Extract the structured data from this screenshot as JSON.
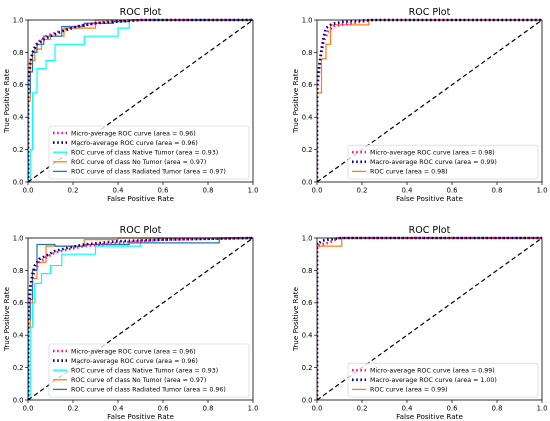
{
  "chart_data": [
    {
      "type": "line",
      "title": "ROC Plot",
      "xlabel": "False Positive Rate",
      "ylabel": "True Positive Rate",
      "xlim": [
        0,
        1
      ],
      "ylim": [
        0,
        1
      ],
      "xticks": [
        "0.0",
        "0.2",
        "0.4",
        "0.6",
        "0.8",
        "1.0"
      ],
      "yticks": [
        "0.0",
        "0.2",
        "0.4",
        "0.6",
        "0.8",
        "1.0"
      ],
      "grid": false,
      "legend_position": "lower right",
      "series": [
        {
          "name": "Micro-average ROC curve (area = 0.96)",
          "color": "#ff1493",
          "style": "dotted",
          "x": [
            0,
            0,
            0.01,
            0.02,
            0.03,
            0.05,
            0.08,
            0.12,
            0.18,
            0.25,
            0.35,
            0.5,
            1.0
          ],
          "y": [
            0,
            0.58,
            0.72,
            0.8,
            0.84,
            0.87,
            0.9,
            0.92,
            0.95,
            0.97,
            0.99,
            1.0,
            1.0
          ]
        },
        {
          "name": "Macro-average ROC curve (area = 0.96)",
          "color": "#000080",
          "style": "dotted",
          "x": [
            0,
            0,
            0.01,
            0.02,
            0.04,
            0.07,
            0.1,
            0.15,
            0.22,
            0.3,
            0.4,
            0.5,
            1.0
          ],
          "y": [
            0,
            0.6,
            0.74,
            0.8,
            0.85,
            0.88,
            0.9,
            0.93,
            0.96,
            0.98,
            0.99,
            1.0,
            1.0
          ]
        },
        {
          "name": "ROC curve of class Native Tumor (area = 0.93)",
          "color": "#00ffff",
          "style": "solid",
          "x": [
            0,
            0.01,
            0.01,
            0.02,
            0.02,
            0.04,
            0.04,
            0.08,
            0.08,
            0.12,
            0.12,
            0.25,
            0.25,
            0.4,
            0.4,
            0.45,
            0.45,
            1.0
          ],
          "y": [
            0,
            0,
            0.2,
            0.2,
            0.55,
            0.55,
            0.7,
            0.7,
            0.75,
            0.75,
            0.85,
            0.85,
            0.9,
            0.9,
            0.95,
            0.95,
            1.0,
            1.0
          ]
        },
        {
          "name": "ROC curve of class No Tumor (area = 0.97)",
          "color": "#ff7f0e",
          "style": "solid",
          "x": [
            0,
            0,
            0.01,
            0.01,
            0.03,
            0.03,
            0.06,
            0.06,
            0.1,
            0.1,
            0.16,
            0.16,
            0.3,
            0.3,
            1.0
          ],
          "y": [
            0,
            0.5,
            0.5,
            0.75,
            0.75,
            0.82,
            0.82,
            0.88,
            0.88,
            0.9,
            0.9,
            0.95,
            0.95,
            1.0,
            1.0
          ]
        },
        {
          "name": "ROC curve of class Radiated Tumor (area = 0.97)",
          "color": "#1f77b4",
          "style": "solid",
          "x": [
            0,
            0,
            0.01,
            0.01,
            0.02,
            0.02,
            0.04,
            0.04,
            0.07,
            0.07,
            0.15,
            0.15,
            0.25,
            0.25,
            0.38,
            0.38,
            0.45,
            0.45,
            1.0
          ],
          "y": [
            0,
            0.55,
            0.55,
            0.68,
            0.68,
            0.8,
            0.8,
            0.85,
            0.85,
            0.9,
            0.9,
            0.96,
            0.96,
            0.98,
            0.98,
            0.99,
            0.99,
            1.0,
            1.0
          ]
        },
        {
          "name": "",
          "color": "#000000",
          "style": "dashed",
          "x": [
            0,
            1
          ],
          "y": [
            0,
            1
          ]
        }
      ]
    },
    {
      "type": "line",
      "title": "ROC Plot",
      "xlabel": "False Positive Rate",
      "ylabel": "True Positive Rate",
      "xlim": [
        0,
        1
      ],
      "ylim": [
        0,
        1
      ],
      "xticks": [
        "0.0",
        "0.2",
        "0.4",
        "0.6",
        "0.8",
        "1.0"
      ],
      "yticks": [
        "0.0",
        "0.2",
        "0.4",
        "0.6",
        "0.8",
        "1.0"
      ],
      "grid": false,
      "legend_position": "lower right",
      "series": [
        {
          "name": "Micro-average ROC curve (area = 0.98)",
          "color": "#ff1493",
          "style": "dotted",
          "x": [
            0,
            0,
            0.01,
            0.02,
            0.03,
            0.05,
            0.07,
            0.1,
            0.15,
            0.2,
            0.25,
            1.0
          ],
          "y": [
            0,
            0.55,
            0.7,
            0.8,
            0.87,
            0.93,
            0.96,
            0.97,
            0.98,
            0.99,
            1.0,
            1.0
          ]
        },
        {
          "name": "Macro-average ROC curve (area = 0.99)",
          "color": "#000080",
          "style": "dotted",
          "x": [
            0,
            0,
            0.01,
            0.02,
            0.03,
            0.04,
            0.06,
            0.08,
            0.12,
            0.18,
            0.24,
            1.0
          ],
          "y": [
            0,
            0.6,
            0.72,
            0.82,
            0.9,
            0.95,
            0.97,
            0.98,
            0.99,
            0.995,
            1.0,
            1.0
          ]
        },
        {
          "name": "ROC curve (area = 0.98)",
          "color": "#ff7f0e",
          "style": "solid",
          "x": [
            0,
            0,
            0.02,
            0.02,
            0.04,
            0.04,
            0.06,
            0.06,
            0.23,
            0.23,
            1.0
          ],
          "y": [
            0,
            0.55,
            0.55,
            0.76,
            0.76,
            0.85,
            0.85,
            0.97,
            0.97,
            1.0,
            1.0
          ]
        },
        {
          "name": "",
          "color": "#000000",
          "style": "dashed",
          "x": [
            0,
            1
          ],
          "y": [
            0,
            1
          ]
        }
      ]
    },
    {
      "type": "line",
      "title": "ROC Plot",
      "xlabel": "False Positive Rate",
      "ylabel": "True Positive Rate",
      "xlim": [
        0,
        1
      ],
      "ylim": [
        0,
        1
      ],
      "xticks": [
        "0.0",
        "0.2",
        "0.4",
        "0.6",
        "0.8",
        "1.0"
      ],
      "yticks": [
        "0.0",
        "0.2",
        "0.4",
        "0.6",
        "0.8",
        "1.0"
      ],
      "grid": false,
      "legend_position": "lower right",
      "series": [
        {
          "name": "Micro-average ROC curve (area = 0.96)",
          "color": "#ff1493",
          "style": "dotted",
          "x": [
            0,
            0,
            0.01,
            0.02,
            0.03,
            0.05,
            0.08,
            0.12,
            0.18,
            0.25,
            0.4,
            0.6,
            1.0
          ],
          "y": [
            0,
            0.5,
            0.65,
            0.75,
            0.8,
            0.85,
            0.88,
            0.91,
            0.93,
            0.95,
            0.97,
            0.99,
            1.0
          ]
        },
        {
          "name": "Macro-average ROC curve (area = 0.96)",
          "color": "#000080",
          "style": "dotted",
          "x": [
            0,
            0,
            0.01,
            0.02,
            0.03,
            0.05,
            0.08,
            0.12,
            0.18,
            0.25,
            0.4,
            0.6,
            1.0
          ],
          "y": [
            0,
            0.55,
            0.7,
            0.78,
            0.83,
            0.87,
            0.89,
            0.92,
            0.94,
            0.96,
            0.98,
            0.99,
            1.0
          ]
        },
        {
          "name": "ROC curve of class Native Tumor (area = 0.93)",
          "color": "#00ffff",
          "style": "solid",
          "x": [
            0,
            0.01,
            0.01,
            0.02,
            0.02,
            0.03,
            0.03,
            0.06,
            0.06,
            0.1,
            0.1,
            0.15,
            0.15,
            0.3,
            0.3,
            0.5,
            0.5,
            1.0
          ],
          "y": [
            0,
            0,
            0.45,
            0.45,
            0.6,
            0.6,
            0.72,
            0.72,
            0.78,
            0.78,
            0.83,
            0.83,
            0.9,
            0.9,
            0.95,
            0.95,
            1.0,
            1.0
          ]
        },
        {
          "name": "ROC curve of class No Tumor (area = 0.97)",
          "color": "#ff7f0e",
          "style": "solid",
          "x": [
            0,
            0,
            0.01,
            0.01,
            0.02,
            0.02,
            0.04,
            0.04,
            0.08,
            0.08,
            0.25,
            0.25,
            0.4,
            0.4,
            1.0
          ],
          "y": [
            0,
            0.45,
            0.45,
            0.6,
            0.6,
            0.75,
            0.75,
            0.85,
            0.85,
            0.95,
            0.95,
            0.99,
            0.99,
            1.0,
            1.0
          ]
        },
        {
          "name": "ROC curve of class Radiated Tumor (area = 0.96)",
          "color": "#1f77b4",
          "style": "solid",
          "x": [
            0,
            0,
            0.01,
            0.01,
            0.02,
            0.02,
            0.04,
            0.04,
            0.12,
            0.12,
            0.25,
            0.25,
            0.45,
            0.45,
            0.85,
            0.85,
            1.0
          ],
          "y": [
            0,
            0.5,
            0.5,
            0.62,
            0.62,
            0.8,
            0.8,
            0.96,
            0.96,
            0.95,
            0.95,
            0.96,
            0.96,
            0.97,
            0.97,
            1.0,
            1.0
          ]
        },
        {
          "name": "",
          "color": "#000000",
          "style": "dashed",
          "x": [
            0,
            1
          ],
          "y": [
            0,
            1
          ]
        }
      ]
    },
    {
      "type": "line",
      "title": "ROC Plot",
      "xlabel": "False Positive Rate",
      "ylabel": "True Positive Rate",
      "xlim": [
        0,
        1
      ],
      "ylim": [
        0,
        1
      ],
      "xticks": [
        "0.0",
        "0.2",
        "0.4",
        "0.6",
        "0.8",
        "1.0"
      ],
      "yticks": [
        "0.0",
        "0.2",
        "0.4",
        "0.6",
        "0.8",
        "1.0"
      ],
      "grid": false,
      "legend_position": "lower right",
      "series": [
        {
          "name": "Micro-average ROC curve (area = 0.99)",
          "color": "#ff1493",
          "style": "dotted",
          "x": [
            0,
            0,
            0.02,
            0.05,
            0.1,
            1.0
          ],
          "y": [
            0,
            0.95,
            0.96,
            0.97,
            1.0,
            1.0
          ]
        },
        {
          "name": "Macro-average ROC curve (area = 1.00)",
          "color": "#000080",
          "style": "dotted",
          "x": [
            0,
            0,
            0.01,
            0.02,
            0.03,
            0.05,
            0.08,
            0.1,
            1.0
          ],
          "y": [
            0,
            0.97,
            0.97,
            0.98,
            0.985,
            0.99,
            0.995,
            1.0,
            1.0
          ]
        },
        {
          "name": "ROC curve (area = 0.99)",
          "color": "#ff7f0e",
          "style": "solid",
          "x": [
            0,
            0,
            0.11,
            0.11,
            1.0
          ],
          "y": [
            0,
            0.95,
            0.95,
            1.0,
            1.0
          ]
        },
        {
          "name": "",
          "color": "#000000",
          "style": "dashed",
          "x": [
            0,
            1
          ],
          "y": [
            0,
            1
          ]
        }
      ]
    }
  ]
}
